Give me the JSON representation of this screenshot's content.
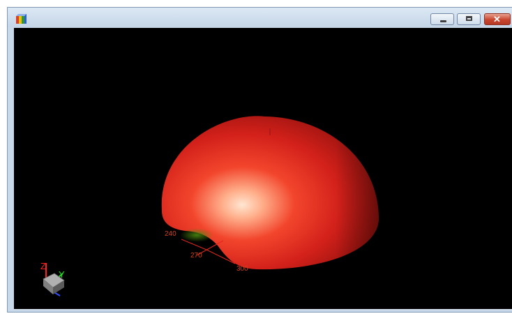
{
  "window": {
    "icon": "colorful-3d-bars-icon",
    "controls": {
      "minimize_icon": "minimize-icon",
      "maximize_icon": "maximize-icon",
      "close_icon": "close-icon",
      "close_glyph": "✕"
    }
  },
  "viewport": {
    "background": "#000000",
    "surface_color": "#e0281e",
    "highlight_color": "#ffd6c2",
    "angle_labels": [
      "240",
      "270",
      "300"
    ],
    "triad": {
      "z_label": "Z",
      "y_label": "Y",
      "z_color": "#ff2020",
      "y_color": "#20e020",
      "x_color": "#3050ff"
    }
  }
}
